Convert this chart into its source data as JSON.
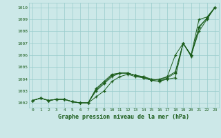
{
  "title": "Graphe pression niveau de la mer (hPa)",
  "background_color": "#cce8e8",
  "grid_color": "#99cccc",
  "line_color": "#1a5c1a",
  "xlim": [
    -0.5,
    23.5
  ],
  "ylim": [
    1001.6,
    1010.4
  ],
  "yticks": [
    1002,
    1003,
    1004,
    1005,
    1006,
    1007,
    1008,
    1009,
    1010
  ],
  "xticks": [
    0,
    1,
    2,
    3,
    4,
    5,
    6,
    7,
    8,
    9,
    10,
    11,
    12,
    13,
    14,
    15,
    16,
    17,
    18,
    19,
    20,
    21,
    22,
    23
  ],
  "line1": [
    1002.2,
    1002.4,
    1002.2,
    1002.3,
    1002.3,
    1002.1,
    1002.0,
    1002.0,
    1002.5,
    1003.0,
    1003.8,
    1004.2,
    1004.4,
    1004.2,
    1004.1,
    1003.9,
    1003.8,
    1004.0,
    1004.1,
    1007.0,
    1006.0,
    1008.3,
    1009.1,
    1010.0
  ],
  "line2": [
    1002.2,
    1002.4,
    1002.2,
    1002.3,
    1002.3,
    1002.1,
    1002.0,
    1002.0,
    1003.0,
    1003.6,
    1004.2,
    1004.5,
    1004.5,
    1004.3,
    1004.1,
    1003.9,
    1003.8,
    1004.1,
    1004.5,
    1007.0,
    1006.0,
    1009.0,
    1009.2,
    1010.0
  ],
  "line3": [
    1002.2,
    1002.4,
    1002.2,
    1002.3,
    1002.3,
    1002.1,
    1002.0,
    1002.0,
    1003.1,
    1003.7,
    1004.3,
    1004.5,
    1004.5,
    1004.3,
    1004.2,
    1003.9,
    1004.0,
    1004.2,
    1004.6,
    1007.0,
    1005.9,
    1008.4,
    1009.1,
    1010.0
  ],
  "line4": [
    1002.2,
    1002.4,
    1002.2,
    1002.3,
    1002.3,
    1002.1,
    1002.0,
    1002.0,
    1003.2,
    1003.8,
    1004.4,
    1004.5,
    1004.5,
    1004.3,
    1004.2,
    1004.0,
    1003.9,
    1004.2,
    1006.0,
    1007.0,
    1006.0,
    1008.0,
    1009.0,
    1010.0
  ]
}
